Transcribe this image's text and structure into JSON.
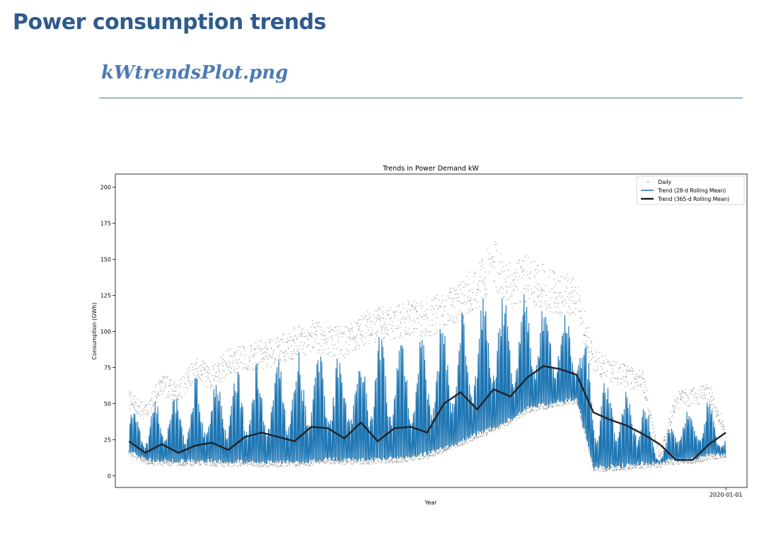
{
  "page": {
    "title": "Power consumption trends",
    "file_heading": "kWtrendsPlot.png"
  },
  "chart_data": {
    "type": "line",
    "title": "Trends in Power Demand kW",
    "xlabel": "Year",
    "ylabel": "Consumption (GWh)",
    "ylim": [
      -8,
      209
    ],
    "xlim": [
      "2010-10-18",
      "2020-04-26"
    ],
    "yticks": [
      0,
      25,
      50,
      75,
      100,
      125,
      150,
      175,
      200
    ],
    "xticks": [
      {
        "value": "2020-01-01",
        "label": "2020-01-01"
      }
    ],
    "grid": false,
    "legend": {
      "placement": "top-right",
      "entries": [
        {
          "name": "Daily",
          "style": "points",
          "color": "#808080"
        },
        {
          "name": "Trend (28-d Rolling Mean)",
          "style": "line",
          "color": "#1f77b4"
        },
        {
          "name": "Trend (365-d Rolling Mean)",
          "style": "line",
          "color": "#222222"
        }
      ]
    },
    "colors": {
      "daily": "#808080",
      "trend28": "#1f77b4",
      "trend365": "#222222"
    },
    "series": [
      {
        "name": "Trend (28-d Rolling Mean)",
        "role": "envelope",
        "x": [
          "2011-01-01",
          "2011-04-01",
          "2011-07-01",
          "2011-10-01",
          "2012-01-01",
          "2012-04-01",
          "2012-07-01",
          "2012-10-01",
          "2013-01-01",
          "2013-04-01",
          "2013-07-01",
          "2013-10-01",
          "2014-01-01",
          "2014-04-01",
          "2014-07-01",
          "2014-10-01",
          "2015-01-01",
          "2015-04-01",
          "2015-07-01",
          "2015-10-01",
          "2016-01-01",
          "2016-04-01",
          "2016-07-01",
          "2016-10-01",
          "2017-01-01",
          "2017-04-01",
          "2017-07-01",
          "2017-10-01",
          "2018-01-01",
          "2018-04-01",
          "2018-07-01",
          "2018-10-01",
          "2019-01-01",
          "2019-04-01",
          "2019-07-01",
          "2019-10-01",
          "2019-12-31"
        ],
        "low": [
          16,
          10,
          9,
          9,
          9,
          9,
          8,
          9,
          8,
          8,
          8,
          9,
          10,
          10,
          10,
          10,
          11,
          12,
          14,
          18,
          22,
          28,
          32,
          38,
          45,
          48,
          50,
          52,
          5,
          5,
          6,
          7,
          8,
          10,
          10,
          13,
          14
        ],
        "high": [
          50,
          42,
          60,
          55,
          70,
          65,
          75,
          78,
          80,
          82,
          88,
          92,
          90,
          88,
          95,
          100,
          100,
          105,
          102,
          110,
          115,
          125,
          140,
          125,
          130,
          125,
          120,
          118,
          75,
          70,
          65,
          62,
          12,
          50,
          52,
          55,
          28
        ]
      },
      {
        "name": "Trend (365-d Rolling Mean)",
        "x": [
          "2011-01-01",
          "2011-04-01",
          "2011-07-01",
          "2011-10-01",
          "2012-01-01",
          "2012-04-01",
          "2012-07-01",
          "2012-10-01",
          "2013-01-01",
          "2013-04-01",
          "2013-07-01",
          "2013-10-01",
          "2014-01-01",
          "2014-04-01",
          "2014-07-01",
          "2014-10-01",
          "2015-01-01",
          "2015-04-01",
          "2015-07-01",
          "2015-10-01",
          "2016-01-01",
          "2016-04-01",
          "2016-07-01",
          "2016-10-01",
          "2017-01-01",
          "2017-04-01",
          "2017-07-01",
          "2017-10-01",
          "2018-01-01",
          "2018-04-01",
          "2018-07-01",
          "2018-10-01",
          "2019-01-01",
          "2019-04-01",
          "2019-07-01",
          "2019-10-01",
          "2019-12-31"
        ],
        "values": [
          24,
          16,
          22,
          16,
          21,
          23,
          18,
          27,
          30,
          27,
          24,
          34,
          33,
          26,
          37,
          24,
          33,
          34,
          30,
          50,
          58,
          46,
          60,
          55,
          68,
          76,
          74,
          70,
          44,
          39,
          35,
          29,
          22,
          11,
          11,
          22,
          30
        ]
      }
    ]
  }
}
